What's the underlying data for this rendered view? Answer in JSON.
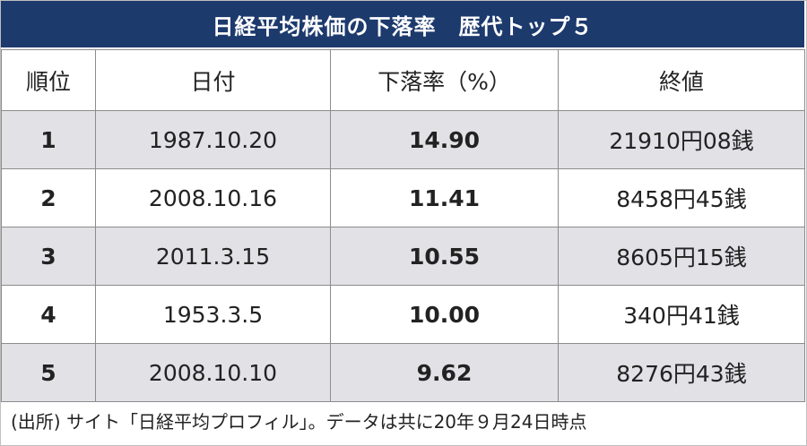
{
  "chart_data": {
    "type": "table",
    "title": "日経平均株価の下落率　歴代トップ５",
    "columns": [
      "順位",
      "日付",
      "下落率（%）",
      "終値"
    ],
    "rows": [
      {
        "rank": "1",
        "date": "1987.10.20",
        "rate": "14.90",
        "close": "21910円08銭"
      },
      {
        "rank": "2",
        "date": "2008.10.16",
        "rate": "11.41",
        "close": "8458円45銭"
      },
      {
        "rank": "3",
        "date": "2011.3.15",
        "rate": "10.55",
        "close": "8605円15銭"
      },
      {
        "rank": "4",
        "date": "1953.3.5",
        "rate": "10.00",
        "close": "340円41銭"
      },
      {
        "rank": "5",
        "date": "2008.10.10",
        "rate": "9.62",
        "close": "8276円43銭"
      }
    ],
    "source": "(出所) サイト「日経平均プロフィル」。データは共に20年９月24日時点"
  },
  "colors": {
    "title_background": "#1d3a6d",
    "row_shade": "#e1e1e6"
  }
}
